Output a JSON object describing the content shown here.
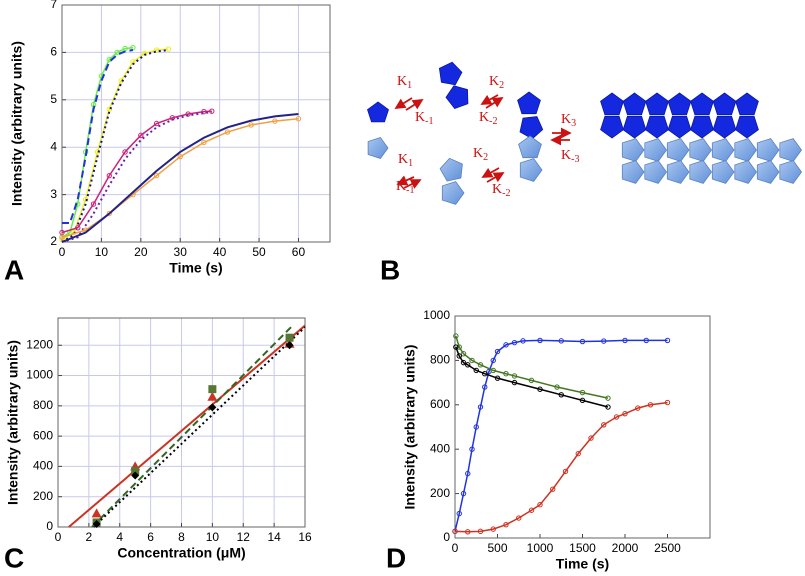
{
  "chart_data": [
    {
      "type": "line",
      "label": "A",
      "xlabel": "Time (s)",
      "ylabel": "Intensity (arbitrary units)",
      "xlim": [
        0,
        68
      ],
      "ylim": [
        2,
        7
      ],
      "xticks": [
        0,
        10,
        20,
        30,
        40,
        50,
        60
      ],
      "yticks": [
        2,
        3,
        4,
        5,
        6,
        7
      ],
      "grid": true,
      "series": [
        {
          "color": "#66ee44",
          "marker": "circle",
          "line": "solid",
          "x": [
            0,
            2,
            4,
            6,
            8,
            10,
            12,
            14,
            16,
            18
          ],
          "values": [
            2.1,
            2.2,
            2.8,
            3.9,
            4.9,
            5.5,
            5.85,
            6.0,
            6.08,
            6.1
          ]
        },
        {
          "color": "#2233dd",
          "marker": "none",
          "line": "dashed",
          "x": [
            0,
            2,
            4,
            6,
            8,
            10,
            12,
            14,
            16,
            18
          ],
          "values": [
            2.4,
            2.4,
            2.9,
            3.8,
            4.8,
            5.4,
            5.8,
            5.95,
            6.02,
            6.05
          ]
        },
        {
          "color": "#eeee22",
          "marker": "circle",
          "line": "solid",
          "x": [
            0,
            3,
            6,
            9,
            12,
            15,
            18,
            21,
            24,
            27
          ],
          "values": [
            2.05,
            2.2,
            2.9,
            3.9,
            4.8,
            5.4,
            5.8,
            5.98,
            6.05,
            6.07
          ]
        },
        {
          "color": "#111188",
          "marker": "none",
          "line": "dotted",
          "x": [
            0,
            3,
            6,
            9,
            12,
            15,
            18,
            21,
            24,
            27
          ],
          "values": [
            2.0,
            2.15,
            2.8,
            3.8,
            4.75,
            5.35,
            5.75,
            5.95,
            6.02,
            6.05
          ]
        },
        {
          "color": "#cc2277",
          "marker": "circle",
          "line": "solid",
          "x": [
            0,
            4,
            8,
            12,
            16,
            20,
            24,
            28,
            32,
            36,
            38
          ],
          "values": [
            2.2,
            2.3,
            2.8,
            3.4,
            3.9,
            4.25,
            4.5,
            4.62,
            4.7,
            4.75,
            4.76
          ]
        },
        {
          "color": "#6622aa",
          "marker": "none",
          "line": "dotted",
          "x": [
            0,
            4,
            8,
            12,
            16,
            20,
            24,
            28,
            32,
            36,
            38
          ],
          "values": [
            2.0,
            2.1,
            2.6,
            3.2,
            3.75,
            4.15,
            4.42,
            4.58,
            4.67,
            4.72,
            4.74
          ]
        },
        {
          "color": "#f0a040",
          "marker": "circle",
          "line": "solid",
          "x": [
            0,
            6,
            12,
            18,
            24,
            30,
            36,
            42,
            48,
            54,
            60
          ],
          "values": [
            2.1,
            2.25,
            2.6,
            3.0,
            3.4,
            3.8,
            4.1,
            4.32,
            4.47,
            4.55,
            4.6
          ]
        },
        {
          "color": "#222288",
          "marker": "none",
          "line": "solid",
          "x": [
            0,
            6,
            12,
            18,
            24,
            30,
            36,
            42,
            48,
            54,
            60
          ],
          "values": [
            2.0,
            2.2,
            2.6,
            3.05,
            3.5,
            3.9,
            4.2,
            4.42,
            4.56,
            4.65,
            4.7
          ]
        }
      ]
    },
    {
      "type": "scatter",
      "label": "C",
      "xlabel": "Concentration (μM)",
      "ylabel": "Intensity (arbitrary units)",
      "xlim": [
        0,
        16
      ],
      "ylim": [
        0,
        1380
      ],
      "xticks": [
        0,
        2,
        4,
        6,
        8,
        10,
        12,
        14,
        16
      ],
      "yticks": [
        0,
        200,
        400,
        600,
        800,
        1000,
        1200
      ],
      "grid": true,
      "series": [
        {
          "color": "#cc3322",
          "marker": "none",
          "line": "solid",
          "x": [
            0.7,
            16
          ],
          "values": [
            0,
            1330
          ]
        },
        {
          "color": "#336622",
          "marker": "none",
          "line": "dashed",
          "x": [
            2.2,
            15.2
          ],
          "values": [
            0,
            1330
          ]
        },
        {
          "color": "#000000",
          "marker": "none",
          "line": "dotted",
          "x": [
            2.3,
            16
          ],
          "values": [
            0,
            1320
          ]
        },
        {
          "color": "#cc3322",
          "marker": "triangle",
          "line": "none",
          "x": [
            2.5,
            5,
            10,
            15
          ],
          "values": [
            90,
            400,
            860,
            1210
          ]
        },
        {
          "color": "#557733",
          "marker": "square",
          "line": "none",
          "x": [
            2.5,
            5,
            10,
            15
          ],
          "values": [
            30,
            370,
            910,
            1250
          ]
        },
        {
          "color": "#000000",
          "marker": "diamond",
          "line": "none",
          "x": [
            2.5,
            5,
            10,
            15
          ],
          "values": [
            20,
            340,
            790,
            1200
          ]
        }
      ]
    },
    {
      "type": "scatter",
      "label": "D",
      "xlabel": "Time (s)",
      "ylabel": "Intensity (arbitrary units)",
      "xlim": [
        0,
        3000
      ],
      "ylim": [
        0,
        1000
      ],
      "xticks": [
        0,
        500,
        1000,
        1500,
        2000,
        2500
      ],
      "yticks": [
        0,
        200,
        400,
        600,
        800,
        1000
      ],
      "grid": false,
      "series": [
        {
          "color": "#2233dd",
          "marker": "circle",
          "line": "solid",
          "x": [
            0,
            50,
            100,
            150,
            200,
            250,
            300,
            350,
            400,
            450,
            500,
            600,
            700,
            800,
            1000,
            1250,
            1500,
            1750,
            2000,
            2250,
            2500
          ],
          "values": [
            30,
            110,
            200,
            290,
            400,
            500,
            590,
            680,
            750,
            800,
            840,
            870,
            880,
            888,
            890,
            888,
            885,
            887,
            890,
            890,
            890
          ]
        },
        {
          "color": "#cc3322",
          "marker": "circle",
          "line": "solid",
          "x": [
            0,
            150,
            300,
            450,
            600,
            750,
            900,
            1000,
            1150,
            1300,
            1450,
            1600,
            1750,
            1900,
            2000,
            2150,
            2300,
            2500
          ],
          "values": [
            30,
            28,
            30,
            40,
            60,
            90,
            125,
            150,
            220,
            300,
            380,
            450,
            510,
            545,
            560,
            585,
            600,
            610
          ]
        },
        {
          "color": "#447722",
          "marker": "circle",
          "line": "solid",
          "x": [
            10,
            50,
            100,
            200,
            300,
            450,
            600,
            700,
            900,
            1200,
            1500,
            1800
          ],
          "values": [
            910,
            860,
            830,
            800,
            780,
            755,
            740,
            730,
            710,
            680,
            655,
            630
          ]
        },
        {
          "color": "#000000",
          "marker": "circle",
          "line": "solid",
          "x": [
            10,
            50,
            100,
            150,
            250,
            350,
            500,
            700,
            1000,
            1250,
            1500,
            1800
          ],
          "values": [
            860,
            820,
            790,
            780,
            755,
            740,
            720,
            700,
            670,
            645,
            620,
            590
          ]
        }
      ]
    }
  ],
  "diagram": {
    "label": "B",
    "rates": [
      {
        "symbol": "K",
        "subscript": "1"
      },
      {
        "symbol": "K",
        "subscript": "-1"
      },
      {
        "symbol": "K",
        "subscript": "2"
      },
      {
        "symbol": "K",
        "subscript": "-2"
      },
      {
        "symbol": "K",
        "subscript": "1"
      },
      {
        "symbol": "K",
        "subscript": "-1"
      },
      {
        "symbol": "K",
        "subscript": "2"
      },
      {
        "symbol": "K",
        "subscript": "-2"
      },
      {
        "symbol": "K",
        "subscript": "3"
      },
      {
        "symbol": "K",
        "subscript": "-3"
      }
    ]
  }
}
